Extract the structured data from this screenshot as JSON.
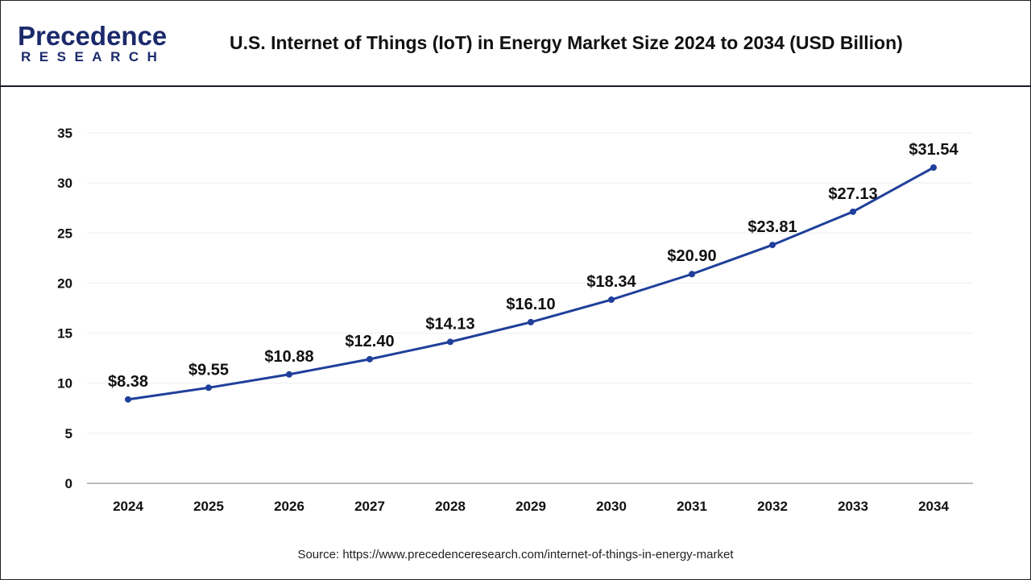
{
  "header": {
    "logo_line1": "Precedence",
    "logo_line2": "RESEARCH",
    "title": "U.S. Internet of Things (IoT) in Energy Market Size 2024 to 2034 (USD Billion)"
  },
  "source": "Source: https://www.precedenceresearch.com/internet-of-things-in-energy-market",
  "chart_data": {
    "type": "line",
    "title": "U.S. Internet of Things (IoT) in Energy Market Size 2024 to 2034 (USD Billion)",
    "categories": [
      "2024",
      "2025",
      "2026",
      "2027",
      "2028",
      "2029",
      "2030",
      "2031",
      "2032",
      "2033",
      "2034"
    ],
    "values": [
      8.38,
      9.55,
      10.88,
      12.4,
      14.13,
      16.1,
      18.34,
      20.9,
      23.81,
      27.13,
      31.54
    ],
    "data_labels": [
      "$8.38",
      "$9.55",
      "$10.88",
      "$12.40",
      "$14.13",
      "$16.10",
      "$18.34",
      "$20.90",
      "$23.81",
      "$27.13",
      "$31.54"
    ],
    "ylim": [
      0,
      35
    ],
    "yticks": [
      0,
      5,
      10,
      15,
      20,
      25,
      30,
      35
    ],
    "grid": true,
    "line_color": "#1f3f9a",
    "xlabel": "",
    "ylabel": ""
  }
}
